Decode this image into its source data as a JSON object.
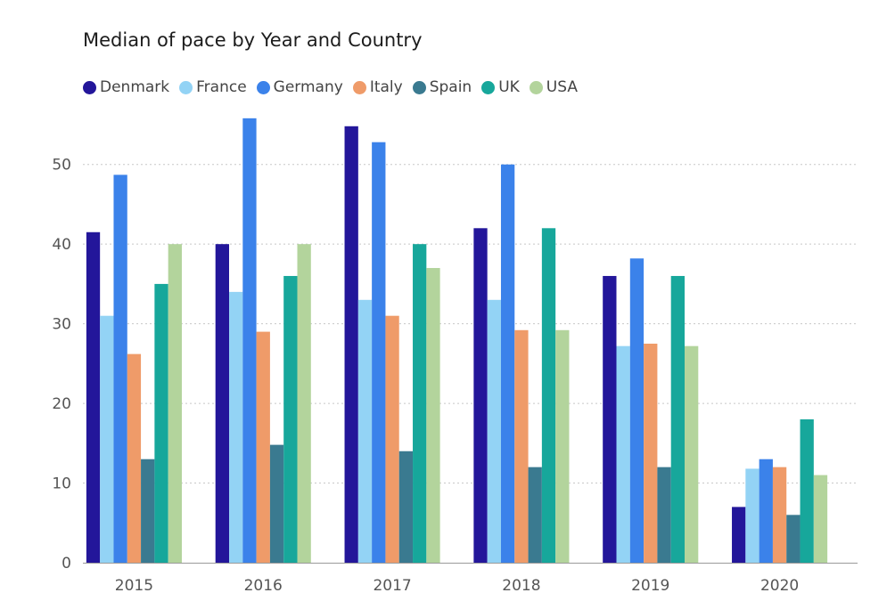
{
  "chart_data": {
    "type": "bar",
    "title": "Median of pace by Year and Country",
    "xlabel": "",
    "ylabel": "",
    "categories": [
      "2015",
      "2016",
      "2017",
      "2018",
      "2019",
      "2020"
    ],
    "ylim": [
      0,
      55
    ],
    "yticks": [
      0,
      10,
      20,
      30,
      40,
      50
    ],
    "grid": true,
    "legend_position": "top-left",
    "series": [
      {
        "name": "Denmark",
        "color": "#23169a",
        "values": [
          41.5,
          40,
          54.8,
          42,
          36,
          7
        ]
      },
      {
        "name": "France",
        "color": "#93d3f5",
        "values": [
          31,
          34,
          33,
          33,
          27.2,
          11.8
        ]
      },
      {
        "name": "Germany",
        "color": "#3b82ea",
        "values": [
          48.7,
          55.8,
          52.8,
          50,
          38.2,
          13
        ]
      },
      {
        "name": "Italy",
        "color": "#ef9b69",
        "values": [
          26.2,
          29,
          31,
          29.2,
          27.5,
          12
        ]
      },
      {
        "name": "Spain",
        "color": "#3a7a90",
        "values": [
          13,
          14.8,
          14,
          12,
          12,
          6
        ]
      },
      {
        "name": "UK",
        "color": "#17a79b",
        "values": [
          35,
          36,
          40,
          42,
          36,
          18
        ]
      },
      {
        "name": "USA",
        "color": "#b3d49c",
        "values": [
          40,
          40,
          37,
          29.2,
          27.2,
          11
        ]
      }
    ]
  }
}
